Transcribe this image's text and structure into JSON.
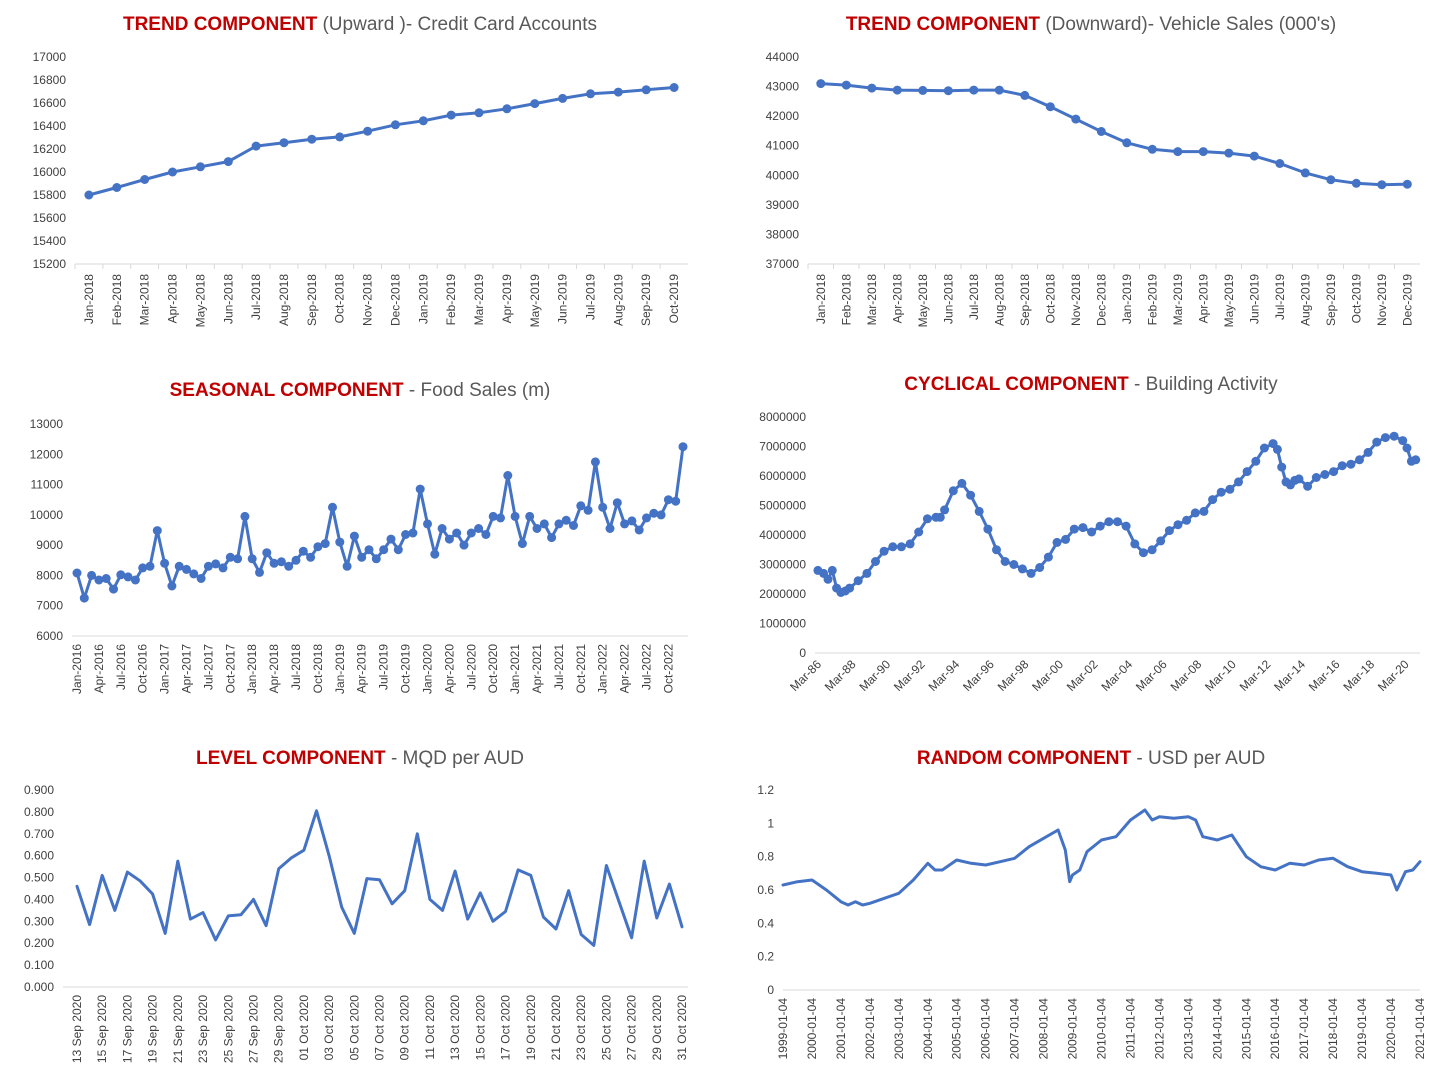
{
  "chart_data": [
    {
      "id": "trend-up",
      "type": "line",
      "markers": true,
      "title_highlight": "TREND COMPONENT",
      "title_rest": " (Upward )- Credit Card Accounts",
      "ylim": [
        15200,
        17000
      ],
      "yticks": [
        15200,
        15400,
        15600,
        15800,
        16000,
        16200,
        16400,
        16600,
        16800,
        17000
      ],
      "categories": [
        "Jan-2018",
        "Feb-2018",
        "Mar-2018",
        "Apr-2018",
        "May-2018",
        "Jun-2018",
        "Jul-2018",
        "Aug-2018",
        "Sep-2018",
        "Oct-2018",
        "Nov-2018",
        "Dec-2018",
        "Jan-2019",
        "Feb-2019",
        "Mar-2019",
        "Apr-2019",
        "May-2019",
        "Jun-2019",
        "Jul-2019",
        "Aug-2019",
        "Sep-2019",
        "Oct-2019"
      ],
      "values": [
        15800,
        15865,
        15935,
        16000,
        16045,
        16090,
        16225,
        16255,
        16285,
        16305,
        16355,
        16410,
        16445,
        16495,
        16515,
        16550,
        16595,
        16640,
        16680,
        16695,
        16715,
        16735
      ]
    },
    {
      "id": "trend-down",
      "type": "line",
      "markers": true,
      "title_highlight": "TREND COMPONENT",
      "title_rest": " (Downward)- Vehicle Sales (000's)",
      "ylim": [
        37000,
        44000
      ],
      "yticks": [
        37000,
        38000,
        39000,
        40000,
        41000,
        42000,
        43000,
        44000
      ],
      "categories": [
        "Jan-2018",
        "Feb-2018",
        "Mar-2018",
        "Apr-2018",
        "May-2018",
        "Jun-2018",
        "Jul-2018",
        "Aug-2018",
        "Sep-2018",
        "Oct-2018",
        "Nov-2018",
        "Dec-2018",
        "Jan-2019",
        "Feb-2019",
        "Mar-2019",
        "Apr-2019",
        "May-2019",
        "Jun-2019",
        "Jul-2019",
        "Aug-2019",
        "Sep-2019",
        "Oct-2019",
        "Nov-2019",
        "Dec-2019"
      ],
      "values": [
        43100,
        43050,
        42950,
        42880,
        42870,
        42860,
        42880,
        42880,
        42700,
        42320,
        41900,
        41480,
        41100,
        40880,
        40800,
        40800,
        40750,
        40650,
        40400,
        40080,
        39850,
        39730,
        39680,
        39700
      ]
    },
    {
      "id": "seasonal",
      "type": "line",
      "markers": true,
      "title_highlight": "SEASONAL COMPONENT",
      "title_rest": " - Food Sales (m)",
      "ylim": [
        6000,
        13000
      ],
      "yticks": [
        6000,
        7000,
        8000,
        9000,
        10000,
        11000,
        12000,
        13000
      ],
      "tick_labels": [
        "Jan-2016",
        "Apr-2016",
        "Jul-2016",
        "Oct-2016",
        "Jan-2017",
        "Apr-2017",
        "Jul-2017",
        "Oct-2017",
        "Jan-2018",
        "Apr-2018",
        "Jul-2018",
        "Oct-2018",
        "Jan-2019",
        "Apr-2019",
        "Jul-2019",
        "Oct-2019",
        "Jan-2020",
        "Apr-2020",
        "Jul-2020",
        "Oct-2020",
        "Jan-2021",
        "Apr-2021",
        "Jul-2021",
        "Oct-2021",
        "Jan-2022",
        "Apr-2022",
        "Jul-2022",
        "Oct-2022"
      ],
      "values": [
        8080,
        7250,
        8000,
        7850,
        7900,
        7550,
        8020,
        7950,
        7850,
        8250,
        8300,
        9480,
        8400,
        7650,
        8300,
        8200,
        8050,
        7900,
        8300,
        8380,
        8250,
        8600,
        8550,
        9950,
        8550,
        8100,
        8750,
        8400,
        8450,
        8300,
        8500,
        8800,
        8600,
        8950,
        9050,
        10250,
        9100,
        8300,
        9300,
        8600,
        8850,
        8550,
        8850,
        9200,
        8850,
        9350,
        9400,
        10850,
        9700,
        8700,
        9550,
        9200,
        9400,
        9000,
        9400,
        9550,
        9350,
        9950,
        9900,
        11300,
        9950,
        9050,
        9950,
        9550,
        9700,
        9250,
        9700,
        9820,
        9650,
        10300,
        10150,
        11750,
        10250,
        9550,
        10400,
        9700,
        9800,
        9500,
        9900,
        10050,
        10000,
        10500,
        10450,
        12250
      ]
    },
    {
      "id": "cyclical",
      "type": "line",
      "markers": true,
      "title_highlight": "CYCLICAL COMPONENT",
      "title_rest": " - Building Activity",
      "ylim": [
        0,
        8000000
      ],
      "yticks": [
        0,
        1000000,
        2000000,
        3000000,
        4000000,
        5000000,
        6000000,
        7000000,
        8000000
      ],
      "tick_labels": [
        "Mar-86",
        "Mar-88",
        "Mar-90",
        "Mar-92",
        "Mar-94",
        "Mar-96",
        "Mar-98",
        "Mar-00",
        "Mar-02",
        "Mar-04",
        "Mar-06",
        "Mar-08",
        "Mar-10",
        "Mar-12",
        "Mar-14",
        "Mar-16",
        "Mar-18",
        "Mar-20"
      ],
      "x": [
        1986.17,
        1986.5,
        1986.75,
        1987.0,
        1987.25,
        1987.5,
        1987.75,
        1988.0,
        1988.5,
        1989.0,
        1989.5,
        1990.0,
        1990.5,
        1991.0,
        1991.5,
        1992.0,
        1992.5,
        1993.0,
        1993.25,
        1993.5,
        1994.0,
        1994.5,
        1995.0,
        1995.5,
        1996.0,
        1996.5,
        1997.0,
        1997.5,
        1998.0,
        1998.5,
        1999.0,
        1999.5,
        2000.0,
        2000.5,
        2001.0,
        2001.5,
        2002.0,
        2002.5,
        2003.0,
        2003.5,
        2004.0,
        2004.5,
        2005.0,
        2005.5,
        2006.0,
        2006.5,
        2007.0,
        2007.5,
        2008.0,
        2008.5,
        2009.0,
        2009.5,
        2010.0,
        2010.5,
        2011.0,
        2011.5,
        2012.0,
        2012.5,
        2012.75,
        2013.0,
        2013.25,
        2013.5,
        2013.75,
        2014.0,
        2014.5,
        2015.0,
        2015.5,
        2016.0,
        2016.5,
        2017.0,
        2017.5,
        2018.0,
        2018.5,
        2019.0,
        2019.5,
        2020.0,
        2020.25,
        2020.5,
        2020.75
      ],
      "values": [
        2800000,
        2700000,
        2500000,
        2800000,
        2200000,
        2050000,
        2100000,
        2200000,
        2450000,
        2700000,
        3100000,
        3450000,
        3600000,
        3600000,
        3700000,
        4100000,
        4550000,
        4600000,
        4600000,
        4850000,
        5500000,
        5750000,
        5350000,
        4800000,
        4200000,
        3500000,
        3100000,
        3000000,
        2850000,
        2700000,
        2900000,
        3250000,
        3750000,
        3850000,
        4200000,
        4250000,
        4100000,
        4300000,
        4450000,
        4450000,
        4300000,
        3700000,
        3400000,
        3500000,
        3800000,
        4150000,
        4350000,
        4500000,
        4750000,
        4800000,
        5200000,
        5450000,
        5550000,
        5800000,
        6150000,
        6500000,
        6950000,
        7100000,
        6900000,
        6300000,
        5800000,
        5700000,
        5850000,
        5900000,
        5650000,
        5950000,
        6050000,
        6150000,
        6350000,
        6400000,
        6550000,
        6800000,
        7150000,
        7300000,
        7350000,
        7200000,
        6950000,
        6500000,
        6550000
      ]
    },
    {
      "id": "level",
      "type": "line",
      "markers": false,
      "title_highlight": "LEVEL COMPONENT",
      "title_rest": " - MQD per AUD",
      "ylim": [
        0,
        0.9
      ],
      "yticks": [
        "0.000",
        "0.100",
        "0.200",
        "0.300",
        "0.400",
        "0.500",
        "0.600",
        "0.700",
        "0.800",
        "0.900"
      ],
      "tick_labels": [
        "13 Sep 2020",
        "15 Sep 2020",
        "17 Sep 2020",
        "19 Sep 2020",
        "21 Sep 2020",
        "23 Sep 2020",
        "25 Sep 2020",
        "27 Sep 2020",
        "29 Sep 2020",
        "01 Oct 2020",
        "03 Oct 2020",
        "05 Oct 2020",
        "07 Oct 2020",
        "09 Oct 2020",
        "11 Oct 2020",
        "13 Oct 2020",
        "15 Oct 2020",
        "17 Oct 2020",
        "19 Oct 2020",
        "21 Oct 2020",
        "23 Oct 2020",
        "25 Oct 2020",
        "27 Oct 2020",
        "29 Oct 2020",
        "31 Oct 2020"
      ],
      "values": [
        0.46,
        0.285,
        0.51,
        0.35,
        0.525,
        0.485,
        0.425,
        0.245,
        0.575,
        0.31,
        0.34,
        0.215,
        0.325,
        0.33,
        0.4,
        0.28,
        0.54,
        0.59,
        0.625,
        0.805,
        0.6,
        0.365,
        0.245,
        0.495,
        0.49,
        0.38,
        0.44,
        0.7,
        0.4,
        0.35,
        0.53,
        0.31,
        0.43,
        0.3,
        0.345,
        0.535,
        0.51,
        0.32,
        0.265,
        0.44,
        0.24,
        0.19,
        0.555,
        0.39,
        0.225,
        0.575,
        0.315,
        0.47,
        0.275
      ]
    },
    {
      "id": "random",
      "type": "line",
      "markers": false,
      "title_highlight": "RANDOM COMPONENT",
      "title_rest": " - USD per AUD",
      "ylim": [
        0,
        1.2
      ],
      "yticks": [
        "0",
        "0.2",
        "0.4",
        "0.6",
        "0.8",
        "1",
        "1.2"
      ],
      "tick_labels": [
        "1999-01-04",
        "2000-01-04",
        "2001-01-04",
        "2002-01-04",
        "2003-01-04",
        "2004-01-04",
        "2005-01-04",
        "2006-01-04",
        "2007-01-04",
        "2008-01-04",
        "2009-01-04",
        "2010-01-04",
        "2011-01-04",
        "2012-01-04",
        "2013-01-04",
        "2014-01-04",
        "2015-01-04",
        "2016-01-04",
        "2017-01-04",
        "2018-01-04",
        "2019-01-04",
        "2020-01-04",
        "2021-01-04"
      ],
      "x": [
        1999.0,
        1999.5,
        2000.0,
        2000.5,
        2001.0,
        2001.25,
        2001.5,
        2001.75,
        2002.0,
        2002.5,
        2003.0,
        2003.5,
        2004.0,
        2004.25,
        2004.5,
        2005.0,
        2005.5,
        2006.0,
        2006.5,
        2007.0,
        2007.5,
        2008.0,
        2008.5,
        2008.75,
        2008.9,
        2009.0,
        2009.25,
        2009.5,
        2010.0,
        2010.5,
        2011.0,
        2011.25,
        2011.5,
        2011.75,
        2012.0,
        2012.5,
        2013.0,
        2013.25,
        2013.5,
        2014.0,
        2014.5,
        2015.0,
        2015.5,
        2016.0,
        2016.5,
        2017.0,
        2017.5,
        2018.0,
        2018.5,
        2019.0,
        2019.5,
        2020.0,
        2020.2,
        2020.5,
        2020.75,
        2021.0
      ],
      "values": [
        0.63,
        0.65,
        0.66,
        0.6,
        0.53,
        0.51,
        0.53,
        0.51,
        0.52,
        0.55,
        0.58,
        0.66,
        0.76,
        0.72,
        0.72,
        0.78,
        0.76,
        0.75,
        0.77,
        0.79,
        0.86,
        0.91,
        0.96,
        0.84,
        0.65,
        0.69,
        0.72,
        0.83,
        0.9,
        0.92,
        1.02,
        1.05,
        1.08,
        1.02,
        1.04,
        1.03,
        1.04,
        1.02,
        0.92,
        0.9,
        0.93,
        0.8,
        0.74,
        0.72,
        0.76,
        0.75,
        0.78,
        0.79,
        0.74,
        0.71,
        0.7,
        0.69,
        0.6,
        0.71,
        0.72,
        0.77
      ]
    }
  ]
}
